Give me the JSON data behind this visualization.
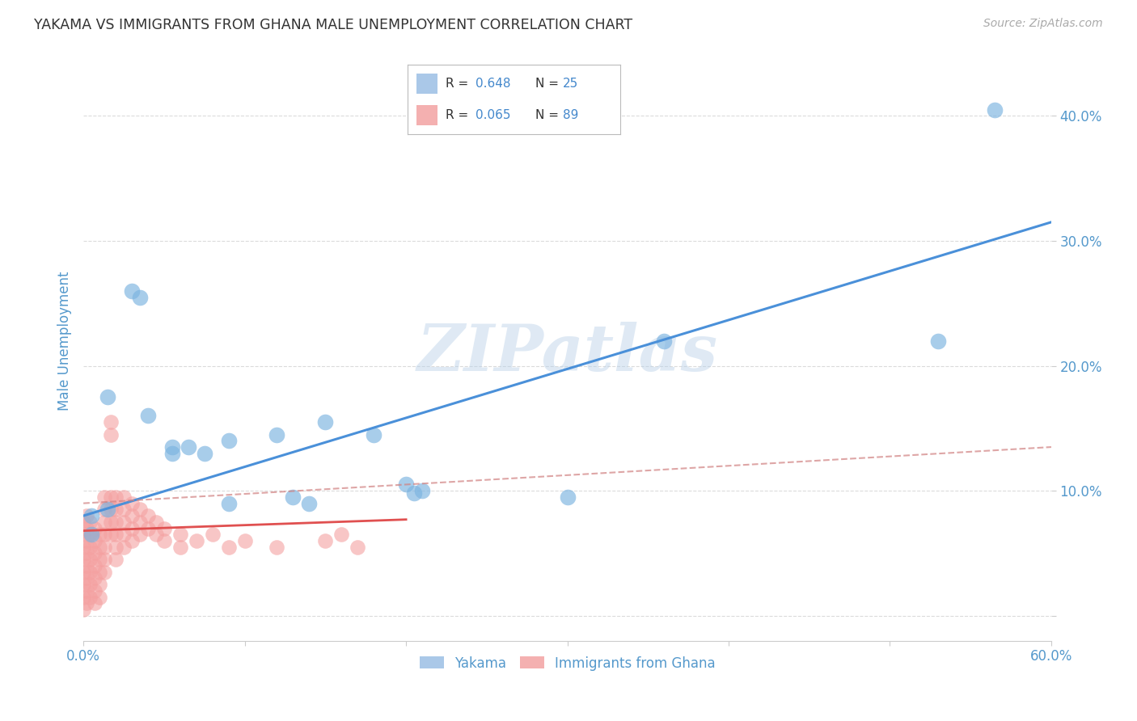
{
  "title": "YAKAMA VS IMMIGRANTS FROM GHANA MALE UNEMPLOYMENT CORRELATION CHART",
  "source": "Source: ZipAtlas.com",
  "ylabel": "Male Unemployment",
  "watermark": "ZIPatlas",
  "xlim": [
    0.0,
    0.6
  ],
  "ylim": [
    -0.02,
    0.46
  ],
  "xticks": [
    0.0,
    0.1,
    0.2,
    0.3,
    0.4,
    0.5,
    0.6
  ],
  "yticks": [
    0.0,
    0.1,
    0.2,
    0.3,
    0.4
  ],
  "ytick_labels": [
    "",
    "10.0%",
    "20.0%",
    "30.0%",
    "40.0%"
  ],
  "xtick_labels": [
    "0.0%",
    "",
    "",
    "",
    "",
    "",
    "60.0%"
  ],
  "yakama_color": "#7ab3e0",
  "yakama_edge": "#7ab3e0",
  "yakama_line_color": "#4a90d9",
  "ghana_color": "#f4a0a0",
  "ghana_edge": "#f4a0a0",
  "ghana_line_color": "#e05050",
  "ghana_dash_color": "#d08080",
  "background_color": "#ffffff",
  "grid_color": "#cccccc",
  "title_color": "#333333",
  "axis_label_color": "#5599cc",
  "tick_label_color": "#5599cc",
  "yakama_points": [
    [
      0.005,
      0.08
    ],
    [
      0.005,
      0.065
    ],
    [
      0.015,
      0.085
    ],
    [
      0.015,
      0.175
    ],
    [
      0.03,
      0.26
    ],
    [
      0.035,
      0.255
    ],
    [
      0.04,
      0.16
    ],
    [
      0.055,
      0.135
    ],
    [
      0.055,
      0.13
    ],
    [
      0.065,
      0.135
    ],
    [
      0.075,
      0.13
    ],
    [
      0.09,
      0.14
    ],
    [
      0.09,
      0.09
    ],
    [
      0.12,
      0.145
    ],
    [
      0.13,
      0.095
    ],
    [
      0.14,
      0.09
    ],
    [
      0.15,
      0.155
    ],
    [
      0.18,
      0.145
    ],
    [
      0.2,
      0.105
    ],
    [
      0.205,
      0.098
    ],
    [
      0.21,
      0.1
    ],
    [
      0.3,
      0.095
    ],
    [
      0.36,
      0.22
    ],
    [
      0.53,
      0.22
    ],
    [
      0.565,
      0.405
    ]
  ],
  "ghana_points": [
    [
      0.0,
      0.075
    ],
    [
      0.0,
      0.065
    ],
    [
      0.0,
      0.055
    ],
    [
      0.0,
      0.045
    ],
    [
      0.0,
      0.035
    ],
    [
      0.0,
      0.025
    ],
    [
      0.0,
      0.015
    ],
    [
      0.0,
      0.005
    ],
    [
      0.002,
      0.08
    ],
    [
      0.002,
      0.07
    ],
    [
      0.002,
      0.06
    ],
    [
      0.002,
      0.05
    ],
    [
      0.002,
      0.04
    ],
    [
      0.002,
      0.03
    ],
    [
      0.002,
      0.02
    ],
    [
      0.002,
      0.01
    ],
    [
      0.004,
      0.075
    ],
    [
      0.004,
      0.065
    ],
    [
      0.004,
      0.055
    ],
    [
      0.004,
      0.045
    ],
    [
      0.004,
      0.035
    ],
    [
      0.004,
      0.025
    ],
    [
      0.004,
      0.015
    ],
    [
      0.007,
      0.07
    ],
    [
      0.007,
      0.06
    ],
    [
      0.007,
      0.05
    ],
    [
      0.007,
      0.04
    ],
    [
      0.007,
      0.03
    ],
    [
      0.007,
      0.02
    ],
    [
      0.007,
      0.01
    ],
    [
      0.01,
      0.065
    ],
    [
      0.01,
      0.055
    ],
    [
      0.01,
      0.045
    ],
    [
      0.01,
      0.035
    ],
    [
      0.01,
      0.025
    ],
    [
      0.01,
      0.015
    ],
    [
      0.013,
      0.095
    ],
    [
      0.013,
      0.085
    ],
    [
      0.013,
      0.075
    ],
    [
      0.013,
      0.065
    ],
    [
      0.013,
      0.055
    ],
    [
      0.013,
      0.045
    ],
    [
      0.013,
      0.035
    ],
    [
      0.017,
      0.155
    ],
    [
      0.017,
      0.145
    ],
    [
      0.017,
      0.095
    ],
    [
      0.017,
      0.085
    ],
    [
      0.017,
      0.075
    ],
    [
      0.017,
      0.065
    ],
    [
      0.02,
      0.095
    ],
    [
      0.02,
      0.085
    ],
    [
      0.02,
      0.075
    ],
    [
      0.02,
      0.065
    ],
    [
      0.02,
      0.055
    ],
    [
      0.02,
      0.045
    ],
    [
      0.025,
      0.095
    ],
    [
      0.025,
      0.085
    ],
    [
      0.025,
      0.075
    ],
    [
      0.025,
      0.065
    ],
    [
      0.025,
      0.055
    ],
    [
      0.03,
      0.09
    ],
    [
      0.03,
      0.08
    ],
    [
      0.03,
      0.07
    ],
    [
      0.03,
      0.06
    ],
    [
      0.035,
      0.085
    ],
    [
      0.035,
      0.075
    ],
    [
      0.035,
      0.065
    ],
    [
      0.04,
      0.08
    ],
    [
      0.04,
      0.07
    ],
    [
      0.045,
      0.075
    ],
    [
      0.045,
      0.065
    ],
    [
      0.05,
      0.07
    ],
    [
      0.05,
      0.06
    ],
    [
      0.06,
      0.065
    ],
    [
      0.06,
      0.055
    ],
    [
      0.07,
      0.06
    ],
    [
      0.08,
      0.065
    ],
    [
      0.09,
      0.055
    ],
    [
      0.1,
      0.06
    ],
    [
      0.12,
      0.055
    ],
    [
      0.15,
      0.06
    ],
    [
      0.16,
      0.065
    ],
    [
      0.17,
      0.055
    ]
  ],
  "yakama_trend": [
    0.0,
    0.08,
    0.6,
    0.315
  ],
  "ghana_trend_solid": [
    0.0,
    0.068,
    0.2,
    0.077
  ],
  "ghana_trend_dashed": [
    0.0,
    0.09,
    0.6,
    0.135
  ]
}
